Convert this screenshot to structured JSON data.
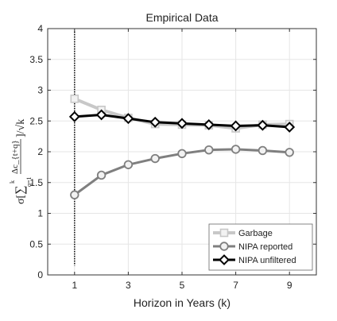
{
  "chart_data": {
    "type": "line",
    "title": "Empirical Data",
    "xlabel": "Horizon in Years (k)",
    "ylabel": "σ[∑ Δc_{t+q} / √k], q=1..k",
    "ylabel_parts": {
      "sigma": "σ",
      "open": "[",
      "sum": "∑",
      "upper_limit": "k",
      "lower_limit": "q=1",
      "numerator": "Δc_{t+q}",
      "close": "]/√k"
    },
    "xlim": [
      0,
      10
    ],
    "ylim": [
      0,
      4
    ],
    "x_ticks": [
      1,
      3,
      5,
      7,
      9
    ],
    "y_ticks": [
      0,
      0.5,
      1,
      1.5,
      2,
      2.5,
      3,
      3.5,
      4
    ],
    "y_tick_labels": [
      "0",
      "0.5",
      "1",
      "1.5",
      "2",
      "2.5",
      "3",
      "3.5",
      "4"
    ],
    "grid": true,
    "legend_position": "bottom-right",
    "vertical_line": {
      "x": 1,
      "y_from": 0.15,
      "y_to": 3.95
    },
    "x": [
      1,
      2,
      3,
      4,
      5,
      6,
      7,
      8,
      9
    ],
    "series": [
      {
        "name": "Garbage",
        "values": [
          2.86,
          2.68,
          2.55,
          2.45,
          2.44,
          2.43,
          2.38,
          2.44,
          2.45
        ],
        "color": "#c8c8c8",
        "marker": "square"
      },
      {
        "name": "NIPA reported",
        "values": [
          1.3,
          1.62,
          1.79,
          1.89,
          1.97,
          2.03,
          2.04,
          2.02,
          1.99
        ],
        "color": "#7f7f7f",
        "marker": "circle"
      },
      {
        "name": "NIPA unfiltered",
        "values": [
          2.57,
          2.6,
          2.54,
          2.48,
          2.46,
          2.44,
          2.42,
          2.43,
          2.4
        ],
        "color": "#000000",
        "marker": "diamond"
      }
    ]
  }
}
